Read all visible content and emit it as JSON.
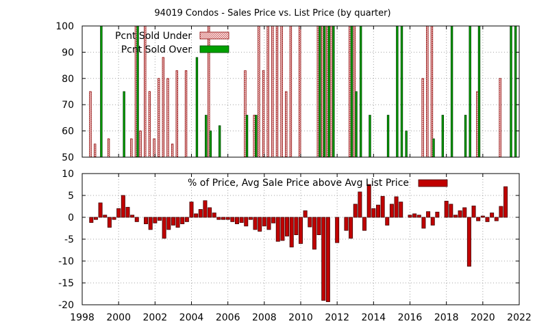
{
  "chart_data": [
    {
      "type": "bar",
      "title": "94019 Condos - Sales Price vs. List Price (by quarter)",
      "ylim": [
        50,
        100
      ],
      "yticks": [
        50,
        60,
        70,
        80,
        90,
        100
      ],
      "xlim": [
        1998,
        2022
      ],
      "grid": true,
      "legend_placement": "top-left",
      "series": [
        {
          "name": "Pcnt Sold Under",
          "color": "#e06060",
          "pattern": "checker",
          "x": [
            1998.5,
            1998.75,
            1999.5,
            2000.75,
            2001.0,
            2001.25,
            2001.5,
            2001.75,
            2002.0,
            2002.25,
            2002.5,
            2002.75,
            2003.0,
            2003.25,
            2003.75,
            2005.0,
            2007.0,
            2007.5,
            2007.75,
            2008.0,
            2008.25,
            2008.5,
            2008.75,
            2009.0,
            2009.25,
            2009.5,
            2010.0,
            2011.0,
            2011.25,
            2011.5,
            2011.75,
            2012.75,
            2013.0,
            2016.75,
            2017.0,
            2017.25,
            2019.75,
            2021.0
          ],
          "values": [
            75,
            55,
            57,
            57,
            100,
            60,
            100,
            75,
            57,
            80,
            88,
            80,
            55,
            83,
            83,
            100,
            83,
            66,
            100,
            83,
            100,
            100,
            100,
            100,
            75,
            100,
            100,
            100,
            100,
            100,
            100,
            100,
            100,
            80,
            100,
            100,
            75,
            80
          ]
        },
        {
          "name": "Pcnt Sold Over",
          "color": "#00a000",
          "x": [
            1999.0,
            2000.25,
            2001.0,
            2004.25,
            2004.75,
            2005.0,
            2005.5,
            2007.0,
            2007.5,
            2011.0,
            2011.25,
            2011.5,
            2011.75,
            2012.75,
            2013.0,
            2013.25,
            2013.75,
            2014.75,
            2015.25,
            2015.5,
            2015.75,
            2017.25,
            2017.75,
            2018.25,
            2019.0,
            2019.25,
            2019.75,
            2021.5,
            2021.75
          ],
          "values": [
            100,
            75,
            100,
            88,
            66,
            60,
            62,
            66,
            66,
            100,
            100,
            100,
            100,
            100,
            75,
            100,
            66,
            66,
            100,
            100,
            60,
            57,
            66,
            100,
            66,
            100,
            100,
            100,
            100
          ]
        }
      ]
    },
    {
      "type": "bar",
      "title": "",
      "ylim": [
        -20,
        10
      ],
      "yticks": [
        -20,
        -15,
        -10,
        -5,
        0,
        5,
        10
      ],
      "xlim": [
        1998,
        2022
      ],
      "xticks": [
        1998,
        2000,
        2002,
        2004,
        2006,
        2008,
        2010,
        2012,
        2014,
        2016,
        2018,
        2020,
        2022
      ],
      "grid": true,
      "legend_placement": "top-right",
      "series": [
        {
          "name": "% of Price, Avg Sale Price above Avg List Price",
          "color": "#c00000",
          "x": [
            1998.5,
            1998.75,
            1999.0,
            1999.25,
            1999.5,
            1999.75,
            2000.0,
            2000.25,
            2000.5,
            2000.75,
            2001.0,
            2001.25,
            2001.5,
            2001.75,
            2002.0,
            2002.25,
            2002.5,
            2002.75,
            2003.0,
            2003.25,
            2003.5,
            2003.75,
            2004.0,
            2004.25,
            2004.5,
            2004.75,
            2005.0,
            2005.25,
            2005.5,
            2005.75,
            2006.0,
            2006.25,
            2006.5,
            2006.75,
            2007.0,
            2007.25,
            2007.5,
            2007.75,
            2008.0,
            2008.25,
            2008.5,
            2008.75,
            2009.0,
            2009.25,
            2009.5,
            2009.75,
            2010.0,
            2010.25,
            2010.5,
            2010.75,
            2011.0,
            2011.25,
            2011.5,
            2011.75,
            2012.0,
            2012.5,
            2012.75,
            2013.0,
            2013.25,
            2013.5,
            2013.75,
            2014.0,
            2014.25,
            2014.5,
            2014.75,
            2015.0,
            2015.25,
            2015.5,
            2016.0,
            2016.25,
            2016.5,
            2016.75,
            2017.0,
            2017.25,
            2017.5,
            2017.75,
            2018.0,
            2018.25,
            2018.5,
            2018.75,
            2019.0,
            2019.25,
            2019.5,
            2019.75,
            2020.0,
            2020.25,
            2020.5,
            2020.75,
            2021.0,
            2021.25,
            2021.5
          ],
          "values": [
            -1.2,
            -0.5,
            3.3,
            0.5,
            -2.3,
            -0.5,
            2.0,
            5.0,
            2.3,
            0.5,
            -1.0,
            0,
            -1.5,
            -2.8,
            -1.3,
            -0.7,
            -4.8,
            -2.8,
            -1.8,
            -2.3,
            -1.5,
            -1.0,
            3.5,
            0.8,
            1.8,
            3.8,
            2.2,
            1.0,
            -0.5,
            -0.5,
            -0.5,
            -1.0,
            -1.5,
            -1.2,
            -2.0,
            -0.5,
            -2.8,
            -3.2,
            -2.0,
            -2.8,
            -1.3,
            -5.5,
            -5.3,
            -4.3,
            -6.8,
            -4.0,
            -6.0,
            1.5,
            -2.2,
            -7.3,
            -4.0,
            -19.0,
            -19.3,
            0,
            -5.8,
            -3.0,
            -4.8,
            3.0,
            5.8,
            -3.0,
            7.5,
            2.0,
            2.8,
            4.8,
            -1.8,
            3.0,
            4.7,
            3.5,
            0.5,
            0.8,
            0.5,
            -2.5,
            1.3,
            -1.8,
            1.2,
            0,
            3.7,
            3.0,
            0.5,
            1.5,
            2.2,
            -11.2,
            2.6,
            -0.8,
            0.3,
            -1.0,
            1.0,
            -0.8,
            2.5,
            7.0,
            0
          ]
        }
      ]
    }
  ]
}
